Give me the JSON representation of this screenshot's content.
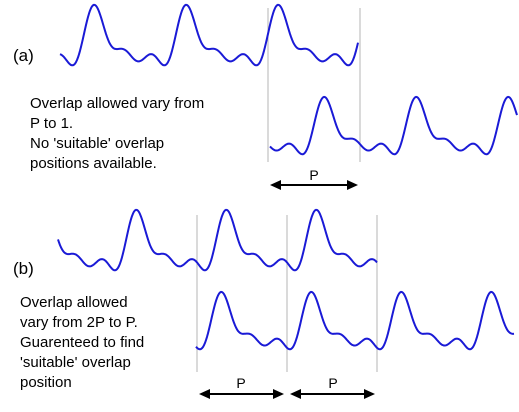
{
  "colors": {
    "wave": "#1a1ad6",
    "marker": "#b4b4b4",
    "arrow": "#000000",
    "text": "#000000",
    "background": "#ffffff"
  },
  "panel_a": {
    "label": "(a)",
    "note_lines": [
      "Overlap allowed vary from",
      "P to 1.",
      "No 'suitable' overlap",
      "positions available."
    ],
    "arrow_label": "P"
  },
  "panel_b": {
    "label": "(b)",
    "note_lines": [
      "Overlap allowed",
      "vary from 2P to P.",
      "Guarenteed to find",
      "'suitable' overlap",
      "position"
    ],
    "arrow_labels": [
      "P",
      "P"
    ]
  }
}
